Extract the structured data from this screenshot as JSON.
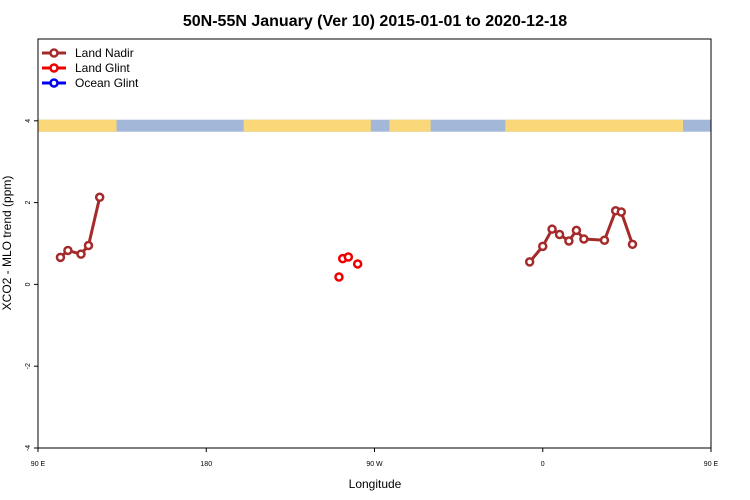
{
  "chart_data": {
    "type": "line",
    "title": "50N-55N January (Ver 10)   2015-01-01 to 2020-12-18",
    "xlabel": "Longitude",
    "ylabel": "XCO2 - MLO trend (ppm)",
    "xlim": [
      0,
      360
    ],
    "ylim": [
      -4,
      6
    ],
    "x_ticks": [
      {
        "value": 0,
        "label": "90 E"
      },
      {
        "value": 90,
        "label": "180"
      },
      {
        "value": 180,
        "label": "90 W"
      },
      {
        "value": 270,
        "label": "0"
      },
      {
        "value": 360,
        "label": "90 E"
      }
    ],
    "y_ticks": [
      {
        "value": -4,
        "label": "-4"
      },
      {
        "value": -2,
        "label": "-2"
      },
      {
        "value": 0,
        "label": "0"
      },
      {
        "value": 2,
        "label": "2"
      },
      {
        "value": 4,
        "label": "4"
      }
    ],
    "legend_position": "top-left",
    "grid": false,
    "land_band": {
      "y_center": 3.88,
      "land_color": "#fad87a",
      "ocean_color": "#a3b8d9"
    },
    "series": [
      {
        "name": "Land Nadir",
        "color": "#a52a2a",
        "segments": [
          [
            [
              12,
              0.66
            ],
            [
              16,
              0.83
            ],
            [
              23,
              0.74
            ],
            [
              27,
              0.95
            ],
            [
              33,
              2.13
            ]
          ],
          [
            [
              263,
              0.55
            ],
            [
              270,
              0.93
            ],
            [
              275,
              1.35
            ],
            [
              279,
              1.22
            ],
            [
              284,
              1.06
            ],
            [
              288,
              1.32
            ],
            [
              292,
              1.11
            ],
            [
              303,
              1.08
            ],
            [
              309,
              1.8
            ],
            [
              312,
              1.77
            ],
            [
              318,
              0.98
            ]
          ],
          [
            [
              372,
              0.66
            ],
            [
              376,
              0.83
            ],
            [
              383,
              0.74
            ],
            [
              387,
              0.95
            ],
            [
              393,
              2.13
            ]
          ]
        ]
      },
      {
        "name": "Land Glint",
        "color": "#ee0000",
        "segments": [
          [
            [
              163,
              0.63
            ],
            [
              166,
              0.67
            ]
          ],
          [
            [
              161,
              0.18
            ]
          ],
          [
            [
              171,
              0.5
            ]
          ]
        ]
      },
      {
        "name": "Ocean Glint",
        "color": "#0000ee",
        "segments": []
      }
    ]
  }
}
